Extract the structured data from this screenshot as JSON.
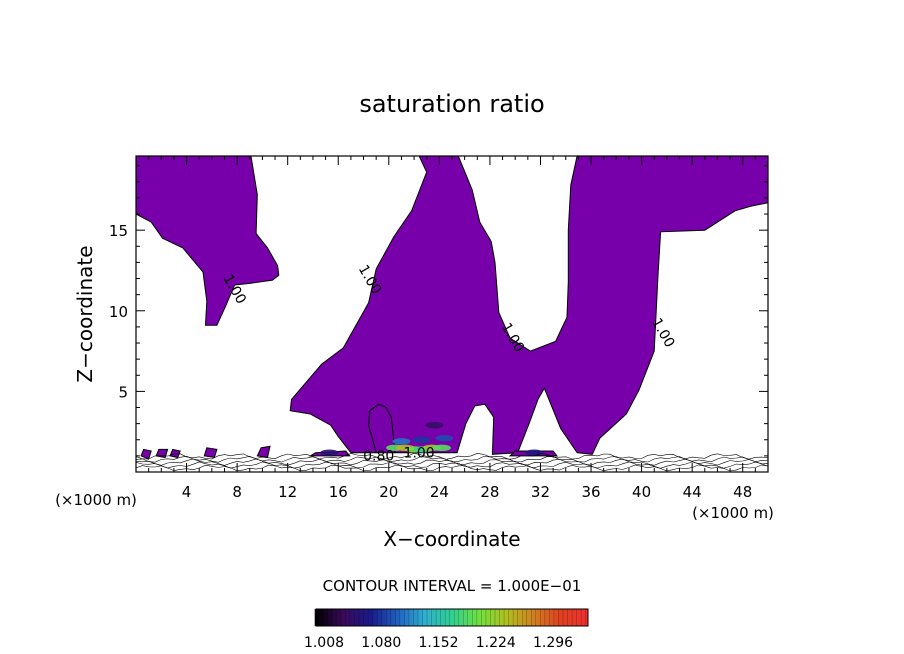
{
  "chart_data": {
    "type": "heatmap",
    "title": "saturation ratio",
    "xlabel": "X−coordinate",
    "ylabel": "Z−coordinate",
    "x_unit": "(×1000 m)",
    "y_unit": "(×1000 m)",
    "xlim": [
      0,
      50
    ],
    "ylim": [
      0,
      19.6
    ],
    "x_ticks": [
      4,
      8,
      12,
      16,
      20,
      24,
      28,
      32,
      36,
      40,
      44,
      48
    ],
    "y_ticks": [
      5,
      10,
      15
    ],
    "contour_interval_label": "CONTOUR INTERVAL = 1.000E−01",
    "contour_labels": [
      {
        "text": "1.00",
        "x": 7.5,
        "z": 11.2
      },
      {
        "text": "1.00",
        "x": 18.2,
        "z": 11.8
      },
      {
        "text": "1.00",
        "x": 29.5,
        "z": 8.2
      },
      {
        "text": "1.00",
        "x": 41.4,
        "z": 8.5
      },
      {
        "text": "0.80",
        "x": 19.2,
        "z": 0.7
      },
      {
        "text": "1.00",
        "x": 22.4,
        "z": 0.9
      }
    ],
    "colorbar": {
      "ticks": [
        "1.008",
        "1.080",
        "1.152",
        "1.224",
        "1.296"
      ],
      "min": 1.008,
      "max": 1.35,
      "colors": [
        "#000000",
        "#3a0a5a",
        "#1a1a8a",
        "#2060c0",
        "#30b0d0",
        "#30d090",
        "#70e040",
        "#b0c020",
        "#d08020",
        "#e04020",
        "#f03030"
      ]
    },
    "fill_color": "#7700aa",
    "regions": [
      {
        "name": "left-plume",
        "points": [
          [
            0,
            19.6
          ],
          [
            9.1,
            19.6
          ],
          [
            9.6,
            17.2
          ],
          [
            9.5,
            14.8
          ],
          [
            10.4,
            13.9
          ],
          [
            11.2,
            12.8
          ],
          [
            11.3,
            12.2
          ],
          [
            10.8,
            11.9
          ],
          [
            9.0,
            11.7
          ],
          [
            7.8,
            11.6
          ],
          [
            7.1,
            10.3
          ],
          [
            6.4,
            9.1
          ],
          [
            5.5,
            9.1
          ],
          [
            5.6,
            10.6
          ],
          [
            5.3,
            12.4
          ],
          [
            3.7,
            13.9
          ],
          [
            2.1,
            14.5
          ],
          [
            1.2,
            15.5
          ],
          [
            0,
            16.0
          ]
        ]
      },
      {
        "name": "main-plume",
        "points": [
          [
            22.4,
            19.6
          ],
          [
            25.5,
            19.6
          ],
          [
            26.6,
            17.5
          ],
          [
            27.2,
            15.5
          ],
          [
            28.1,
            14.3
          ],
          [
            28.4,
            13.0
          ],
          [
            28.7,
            9.9
          ],
          [
            29.6,
            8.3
          ],
          [
            31.2,
            7.5
          ],
          [
            33.2,
            8.1
          ],
          [
            34.1,
            9.6
          ],
          [
            34.2,
            11.8
          ],
          [
            34.2,
            15.0
          ],
          [
            34.4,
            17.8
          ],
          [
            34.9,
            19.6
          ],
          [
            50,
            19.6
          ],
          [
            50,
            16.7
          ],
          [
            48.7,
            16.5
          ],
          [
            47.4,
            16.2
          ],
          [
            45.0,
            15.0
          ],
          [
            41.5,
            14.9
          ],
          [
            41.3,
            12.2
          ],
          [
            41.0,
            7.5
          ],
          [
            39.8,
            5.1
          ],
          [
            38.8,
            3.6
          ],
          [
            36.7,
            2.1
          ],
          [
            36.1,
            1.1
          ],
          [
            34.9,
            1.2
          ],
          [
            33.6,
            2.7
          ],
          [
            32.3,
            5.2
          ],
          [
            31.8,
            4.5
          ],
          [
            31.1,
            3.0
          ],
          [
            30.2,
            1.2
          ],
          [
            28.2,
            1.1
          ],
          [
            28.3,
            3.4
          ],
          [
            27.6,
            4.2
          ],
          [
            26.8,
            4.1
          ],
          [
            26.1,
            3.0
          ],
          [
            25.4,
            1.2
          ],
          [
            19.0,
            1.2
          ],
          [
            18.4,
            2.9
          ],
          [
            18.5,
            3.8
          ],
          [
            19.2,
            4.2
          ],
          [
            19.8,
            4.0
          ],
          [
            20.2,
            3.4
          ],
          [
            20.5,
            1.2
          ],
          [
            17.0,
            1.2
          ],
          [
            16.0,
            2.2
          ],
          [
            15.4,
            2.9
          ],
          [
            13.8,
            3.6
          ],
          [
            12.2,
            3.8
          ],
          [
            12.3,
            4.5
          ],
          [
            14.7,
            6.7
          ],
          [
            16.4,
            7.7
          ],
          [
            18.4,
            10.5
          ],
          [
            19.0,
            12.6
          ],
          [
            20.4,
            14.6
          ],
          [
            21.8,
            16.2
          ],
          [
            23.0,
            18.6
          ]
        ]
      },
      {
        "name": "surface-blob-1",
        "points": [
          [
            0.4,
            1.0
          ],
          [
            0.6,
            1.4
          ],
          [
            1.2,
            1.3
          ],
          [
            1.0,
            0.8
          ]
        ]
      },
      {
        "name": "surface-blob-2",
        "points": [
          [
            1.6,
            1.0
          ],
          [
            1.8,
            1.4
          ],
          [
            2.5,
            1.4
          ],
          [
            2.3,
            0.9
          ]
        ]
      },
      {
        "name": "surface-blob-3",
        "points": [
          [
            2.7,
            1.0
          ],
          [
            2.9,
            1.4
          ],
          [
            3.5,
            1.3
          ],
          [
            3.3,
            0.9
          ]
        ]
      },
      {
        "name": "surface-blob-4",
        "points": [
          [
            5.4,
            1.0
          ],
          [
            5.6,
            1.5
          ],
          [
            6.4,
            1.4
          ],
          [
            6.2,
            0.9
          ]
        ]
      },
      {
        "name": "surface-blob-5",
        "points": [
          [
            9.6,
            1.0
          ],
          [
            9.9,
            1.5
          ],
          [
            10.6,
            1.6
          ],
          [
            10.4,
            0.9
          ]
        ]
      },
      {
        "name": "surface-blob-6",
        "points": [
          [
            13.8,
            1.0
          ],
          [
            14.2,
            1.2
          ],
          [
            16.6,
            1.3
          ],
          [
            16.9,
            1.0
          ]
        ]
      },
      {
        "name": "surface-blob-7",
        "points": [
          [
            29.6,
            1.0
          ],
          [
            30.0,
            1.3
          ],
          [
            33.0,
            1.3
          ],
          [
            33.3,
            1.0
          ]
        ]
      }
    ],
    "moist_cells": [
      {
        "x": 20.5,
        "z": 1.5,
        "value": 1.2
      },
      {
        "x": 21.3,
        "z": 1.5,
        "value": 1.25
      },
      {
        "x": 22.0,
        "z": 1.4,
        "value": 1.22
      },
      {
        "x": 22.7,
        "z": 1.4,
        "value": 1.18
      },
      {
        "x": 23.4,
        "z": 1.5,
        "value": 1.24
      },
      {
        "x": 24.2,
        "z": 1.5,
        "value": 1.2
      },
      {
        "x": 21.0,
        "z": 1.9,
        "value": 1.12
      },
      {
        "x": 22.6,
        "z": 2.0,
        "value": 1.09
      },
      {
        "x": 24.4,
        "z": 2.1,
        "value": 1.1
      },
      {
        "x": 23.6,
        "z": 2.9,
        "value": 1.05
      },
      {
        "x": 15.3,
        "z": 1.2,
        "value": 1.06
      },
      {
        "x": 31.5,
        "z": 1.2,
        "value": 1.07
      }
    ]
  }
}
